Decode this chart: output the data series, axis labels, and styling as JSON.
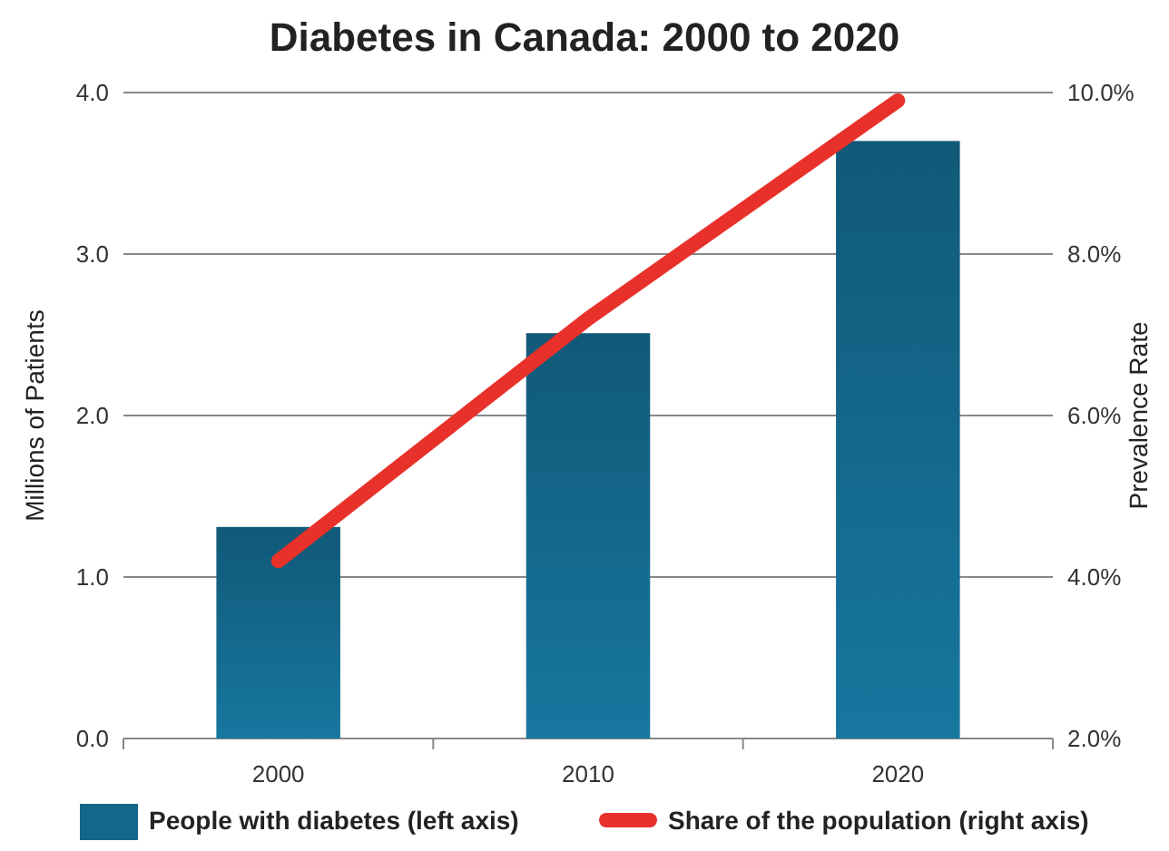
{
  "chart_data": {
    "type": "bar",
    "title": "Diabetes in Canada: 2000 to 2020",
    "ylabel": "Millions of Patients",
    "y2label": "Prevalence Rate",
    "categories": [
      "2000",
      "2010",
      "2020"
    ],
    "series": [
      {
        "name": "People with diabetes (left axis)",
        "color": "#14678a",
        "values": [
          1.31,
          2.51,
          3.7
        ]
      },
      {
        "name": "Share of the population (right axis)",
        "type": "line",
        "axis": "y2",
        "color": "#e8312a",
        "values": [
          4.2,
          7.2,
          9.9
        ]
      }
    ],
    "ylim": [
      0,
      4
    ],
    "yticks": [
      {
        "value": 0,
        "label": "0.0"
      },
      {
        "value": 1,
        "label": "1.0"
      },
      {
        "value": 2,
        "label": "2.0"
      },
      {
        "value": 3,
        "label": "3.0"
      },
      {
        "value": 4,
        "label": "4.0"
      }
    ],
    "y2lim": [
      2,
      10
    ],
    "y2ticks": [
      {
        "value": 2,
        "label": "2.0%"
      },
      {
        "value": 4,
        "label": "4.0%"
      },
      {
        "value": 6,
        "label": "6.0%"
      },
      {
        "value": 8,
        "label": "8.0%"
      },
      {
        "value": 10,
        "label": "10.0%"
      }
    ],
    "grid": "y",
    "legend": "bottom",
    "line_style": "solid",
    "marker": "none"
  }
}
